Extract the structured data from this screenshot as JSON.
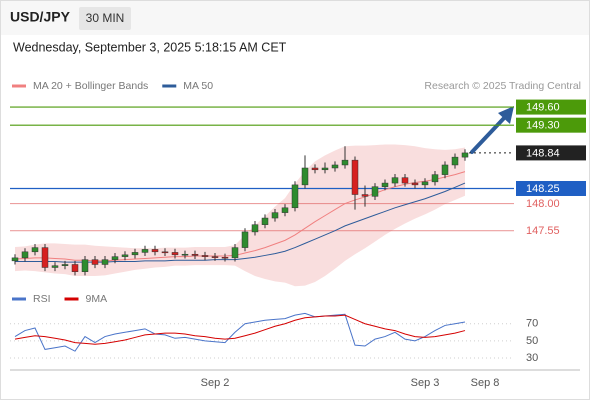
{
  "symbol": "USD/JPY",
  "interval": "30 MIN",
  "timestamp": "Wednesday, September 3, 2025 5:18:15 AM CET",
  "chart_data": [
    {
      "type": "candlestick",
      "credit": "Research © 2025 Trading Central",
      "up_color": "#2e8b2e",
      "down_color": "#d62020",
      "categories": [
        null,
        null,
        null,
        null,
        null,
        null,
        null,
        null,
        null,
        null,
        null,
        null,
        null,
        null,
        null,
        null,
        null,
        null,
        null,
        null,
        "Sep 2",
        null,
        null,
        null,
        null,
        null,
        null,
        null,
        null,
        null,
        null,
        null,
        null,
        null,
        null,
        null,
        null,
        null,
        null,
        null,
        null,
        "Sep 3",
        null,
        null,
        null,
        null,
        null,
        "Sep 8"
      ],
      "open": [
        147.05,
        147.1,
        147.2,
        147.27,
        146.94,
        146.97,
        146.99,
        146.87,
        147.07,
        146.99,
        147.07,
        147.12,
        147.15,
        147.19,
        147.24,
        147.2,
        147.19,
        147.15,
        147.16,
        147.14,
        147.12,
        147.11,
        147.1,
        147.27,
        147.53,
        147.65,
        147.76,
        147.85,
        147.93,
        148.31,
        148.59,
        148.56,
        148.59,
        148.64,
        148.72,
        148.15,
        148.12,
        148.28,
        148.34,
        148.43,
        148.34,
        148.31,
        148.36,
        148.48,
        148.64,
        148.77,
        null,
        null
      ],
      "high": [
        147.16,
        147.26,
        147.33,
        147.33,
        147.03,
        147.05,
        147.05,
        147.13,
        147.13,
        147.13,
        147.18,
        147.21,
        147.25,
        147.3,
        147.3,
        147.26,
        147.25,
        147.22,
        147.22,
        147.2,
        147.18,
        147.17,
        147.33,
        147.59,
        147.71,
        147.82,
        147.91,
        147.99,
        148.37,
        148.8,
        148.65,
        148.68,
        148.7,
        148.95,
        148.78,
        148.3,
        148.34,
        148.4,
        148.49,
        148.49,
        148.4,
        148.42,
        148.54,
        148.7,
        148.83,
        148.9,
        null,
        null
      ],
      "low": [
        146.99,
        147.04,
        147.14,
        146.88,
        146.88,
        146.91,
        146.81,
        146.81,
        146.93,
        146.93,
        147.01,
        147.06,
        147.09,
        147.13,
        147.14,
        147.13,
        147.09,
        147.09,
        147.08,
        147.06,
        147.05,
        147.04,
        147.04,
        147.21,
        147.47,
        147.59,
        147.7,
        147.79,
        147.87,
        148.25,
        148.5,
        148.5,
        148.53,
        148.58,
        147.9,
        147.95,
        148.06,
        148.22,
        148.28,
        148.28,
        148.25,
        148.25,
        148.3,
        148.42,
        148.58,
        148.71,
        null,
        null
      ],
      "close": [
        147.1,
        147.2,
        147.27,
        146.94,
        146.97,
        146.99,
        146.87,
        147.07,
        146.99,
        147.07,
        147.12,
        147.15,
        147.19,
        147.24,
        147.2,
        147.19,
        147.15,
        147.16,
        147.14,
        147.12,
        147.11,
        147.1,
        147.27,
        147.53,
        147.65,
        147.76,
        147.85,
        147.93,
        148.31,
        148.59,
        148.56,
        148.59,
        148.64,
        148.72,
        148.15,
        148.12,
        148.28,
        148.34,
        148.43,
        148.34,
        148.31,
        148.36,
        148.48,
        148.64,
        148.77,
        148.84,
        null,
        null
      ],
      "series": [
        {
          "name": "MA 20 + Bollinger Bands",
          "color": "#f08080",
          "band_color": "#f8d6d6",
          "values": [
            147.08,
            147.09,
            147.1,
            147.1,
            147.09,
            147.08,
            147.06,
            147.06,
            147.05,
            147.05,
            147.06,
            147.07,
            147.08,
            147.09,
            147.1,
            147.11,
            147.12,
            147.12,
            147.13,
            147.13,
            147.13,
            147.13,
            147.14,
            147.18,
            147.22,
            147.27,
            147.33,
            147.39,
            147.48,
            147.59,
            147.7,
            147.8,
            147.9,
            148.0,
            148.06,
            148.11,
            148.17,
            148.23,
            148.28,
            148.32,
            148.35,
            148.37,
            148.4,
            148.44,
            148.48,
            148.53,
            null,
            null
          ],
          "upper": [
            147.28,
            147.29,
            147.32,
            147.34,
            147.34,
            147.33,
            147.32,
            147.32,
            147.3,
            147.29,
            147.28,
            147.27,
            147.26,
            147.26,
            147.26,
            147.27,
            147.27,
            147.27,
            147.28,
            147.28,
            147.28,
            147.28,
            147.31,
            147.48,
            147.64,
            147.79,
            147.95,
            148.09,
            148.33,
            148.54,
            148.7,
            148.8,
            148.88,
            148.95,
            148.96,
            148.96,
            148.97,
            148.98,
            148.98,
            148.97,
            148.95,
            148.92,
            148.9,
            148.89,
            148.9,
            148.93,
            null,
            null
          ],
          "lower": [
            146.88,
            146.89,
            146.88,
            146.86,
            146.84,
            146.83,
            146.8,
            146.8,
            146.8,
            146.81,
            146.84,
            146.87,
            146.9,
            146.92,
            146.94,
            146.95,
            146.97,
            146.97,
            146.98,
            146.98,
            146.98,
            146.98,
            146.97,
            146.88,
            146.8,
            146.75,
            146.71,
            146.69,
            146.63,
            146.64,
            146.7,
            146.8,
            146.92,
            147.05,
            147.16,
            147.26,
            147.37,
            147.48,
            147.58,
            147.67,
            147.75,
            147.82,
            147.9,
            147.99,
            148.06,
            148.13,
            null,
            null
          ]
        },
        {
          "name": "MA 50",
          "color": "#2e5c9a",
          "values": [
            147.04,
            147.04,
            147.04,
            147.04,
            147.04,
            147.03,
            147.03,
            147.03,
            147.03,
            147.03,
            147.04,
            147.04,
            147.04,
            147.05,
            147.05,
            147.05,
            147.06,
            147.06,
            147.06,
            147.06,
            147.07,
            147.07,
            147.07,
            147.09,
            147.11,
            147.14,
            147.17,
            147.21,
            147.27,
            147.34,
            147.41,
            147.48,
            147.55,
            147.63,
            147.69,
            147.75,
            147.81,
            147.87,
            147.93,
            147.98,
            148.03,
            148.08,
            148.14,
            148.2,
            148.27,
            148.34,
            null,
            null
          ]
        }
      ],
      "levels": [
        {
          "value": 149.6,
          "label": "149.60",
          "color": "#4c9a0a",
          "boxed": true
        },
        {
          "value": 149.3,
          "label": "149.30",
          "color": "#4c9a0a",
          "boxed": true
        },
        {
          "value": 148.84,
          "label": "148.84",
          "color": "#222222",
          "boxed": true,
          "dashed": true
        },
        {
          "value": 148.25,
          "label": "148.25",
          "color": "#1f5fc4",
          "boxed": true
        },
        {
          "value": 148.0,
          "label": "148.00",
          "color": "#e06060",
          "boxed": false
        },
        {
          "value": 147.55,
          "label": "147.55",
          "color": "#e06060",
          "boxed": false
        }
      ],
      "ylim": [
        146.6,
        149.85
      ]
    },
    {
      "type": "line",
      "series": [
        {
          "name": "RSI",
          "color": "#4a74c9",
          "values": [
            55,
            62,
            65,
            40,
            42,
            44,
            38,
            55,
            48,
            55,
            58,
            60,
            62,
            64,
            58,
            57,
            53,
            54,
            52,
            50,
            49,
            48,
            60,
            70,
            72,
            74,
            75,
            76,
            80,
            82,
            78,
            79,
            80,
            81,
            45,
            44,
            52,
            55,
            60,
            52,
            50,
            55,
            62,
            68,
            70,
            72,
            null,
            null
          ]
        },
        {
          "name": "9MA",
          "color": "#d40000",
          "values": [
            52,
            54,
            56,
            55,
            53,
            51,
            48,
            47,
            46,
            47,
            49,
            51,
            54,
            57,
            58,
            59,
            59,
            58,
            56,
            55,
            53,
            52,
            53,
            56,
            59,
            63,
            67,
            70,
            74,
            77,
            78,
            79,
            79,
            80,
            75,
            70,
            67,
            64,
            62,
            58,
            55,
            54,
            55,
            57,
            59,
            62,
            null,
            null
          ]
        }
      ],
      "ylim": [
        16,
        86
      ],
      "yticks": [
        30,
        50,
        70
      ],
      "grid": true
    }
  ]
}
